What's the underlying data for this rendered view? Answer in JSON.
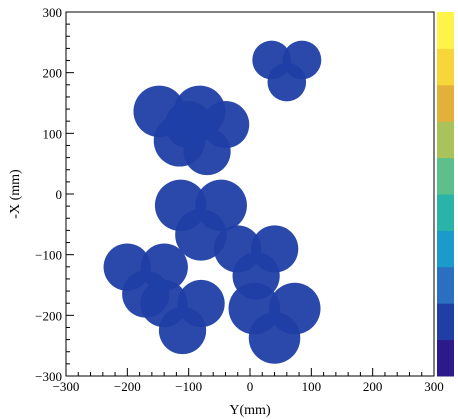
{
  "chart_data": {
    "type": "heatmap",
    "title": "",
    "xlabel": "Y(mm)",
    "ylabel": "-X (mm)",
    "xlim": [
      -300,
      300
    ],
    "ylim": [
      -300,
      300
    ],
    "x_ticks": [
      "−300",
      "−200",
      "−100",
      "0",
      "100",
      "200",
      "300"
    ],
    "x_tick_values": [
      -300,
      -200,
      -100,
      0,
      100,
      200,
      300
    ],
    "y_ticks": [
      "300",
      "200",
      "100",
      "0",
      "−100",
      "−200",
      "−300"
    ],
    "y_tick_values": [
      300,
      200,
      100,
      0,
      -100,
      -200,
      -300
    ],
    "grid": false,
    "colorscale": [
      "#2c1a8a",
      "#1f3fa6",
      "#2a6fc0",
      "#1a9bc9",
      "#2ab3a8",
      "#5cc08a",
      "#a9c25a",
      "#e3b13a",
      "#f7d63a",
      "#fff34a"
    ],
    "fill_color": "#1f3fa6",
    "lobe_clusters": [
      {
        "center": [
          60,
          205
        ],
        "radius": 45
      },
      {
        "center": [
          -115,
          115
        ],
        "radius": 60
      },
      {
        "center": [
          -70,
          95
        ],
        "radius": 55
      },
      {
        "center": [
          -80,
          -40
        ],
        "radius": 60
      },
      {
        "center": [
          -170,
          -140
        ],
        "radius": 55
      },
      {
        "center": [
          10,
          -110
        ],
        "radius": 55
      },
      {
        "center": [
          -110,
          -200
        ],
        "radius": 55
      },
      {
        "center": [
          40,
          -210
        ],
        "radius": 60
      }
    ]
  }
}
